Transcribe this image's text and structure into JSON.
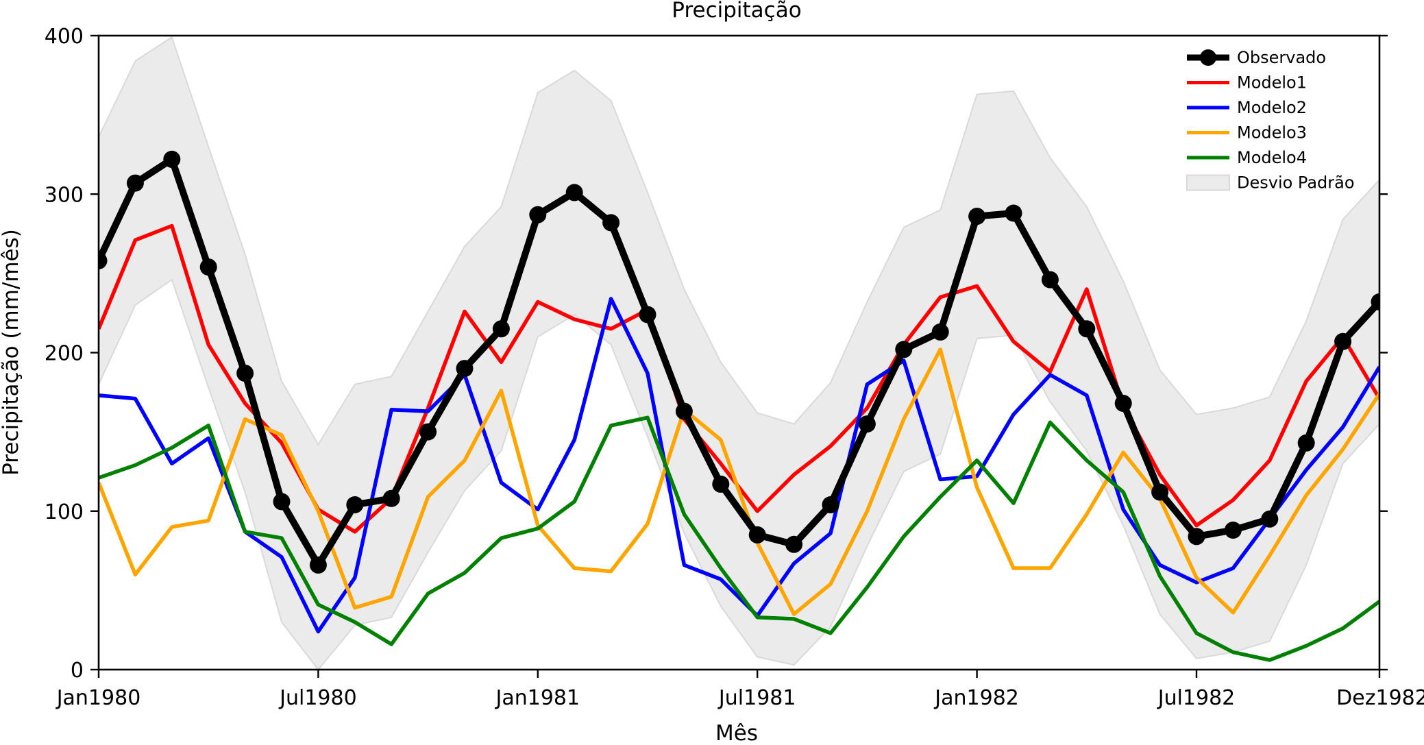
{
  "chart_data": {
    "type": "line",
    "title": "Precipitação",
    "xlabel": "Mês",
    "ylabel": "Precipitação (mm/mês)",
    "ylim": [
      0,
      400
    ],
    "yticks": [
      0,
      100,
      200,
      300,
      400
    ],
    "xticks": [
      {
        "index": 0,
        "label": "Jan1980"
      },
      {
        "index": 6,
        "label": "Jul1980"
      },
      {
        "index": 12,
        "label": "Jan1981"
      },
      {
        "index": 18,
        "label": "Jul1981"
      },
      {
        "index": 24,
        "label": "Jan1982"
      },
      {
        "index": 30,
        "label": "Jul1982"
      },
      {
        "index": 35,
        "label": "Dez1982"
      }
    ],
    "x": [
      "1980-01",
      "1980-02",
      "1980-03",
      "1980-04",
      "1980-05",
      "1980-06",
      "1980-07",
      "1980-08",
      "1980-09",
      "1980-10",
      "1980-11",
      "1980-12",
      "1981-01",
      "1981-02",
      "1981-03",
      "1981-04",
      "1981-05",
      "1981-06",
      "1981-07",
      "1981-08",
      "1981-09",
      "1981-10",
      "1981-11",
      "1981-12",
      "1982-01",
      "1982-02",
      "1982-03",
      "1982-04",
      "1982-05",
      "1982-06",
      "1982-07",
      "1982-08",
      "1982-09",
      "1982-10",
      "1982-11",
      "1982-12"
    ],
    "legend_position": "top-right",
    "grid": false,
    "series": [
      {
        "name": "Observado",
        "color": "#000000",
        "markers": true,
        "values": [
          258,
          307,
          322,
          254,
          187,
          106,
          66,
          104,
          108,
          150,
          190,
          215,
          287,
          301,
          282,
          224,
          163,
          117,
          85,
          79,
          104,
          155,
          202,
          213,
          286,
          288,
          246,
          215,
          168,
          112,
          84,
          88,
          95,
          143,
          207,
          232
        ]
      },
      {
        "name": "Modelo1",
        "color": "#ff0000",
        "values": [
          215,
          271,
          280,
          205,
          168,
          143,
          101,
          87,
          108,
          165,
          226,
          194,
          232,
          221,
          215,
          227,
          158,
          130,
          100,
          123,
          141,
          165,
          205,
          235,
          242,
          207,
          188,
          240,
          166,
          123,
          91,
          107,
          132,
          182,
          210,
          171
        ]
      },
      {
        "name": "Modelo2",
        "color": "#0000ff",
        "values": [
          173,
          171,
          130,
          146,
          87,
          71,
          24,
          58,
          164,
          163,
          186,
          118,
          101,
          145,
          234,
          187,
          66,
          57,
          34,
          67,
          86,
          180,
          195,
          120,
          122,
          161,
          186,
          173,
          101,
          66,
          55,
          64,
          95,
          126,
          153,
          191
        ]
      },
      {
        "name": "Modelo3",
        "color": "#ffa500",
        "values": [
          118,
          60,
          90,
          94,
          158,
          148,
          100,
          39,
          46,
          109,
          132,
          176,
          91,
          64,
          62,
          92,
          164,
          145,
          80,
          35,
          54,
          100,
          158,
          202,
          115,
          64,
          64,
          98,
          137,
          108,
          58,
          36,
          72,
          110,
          139,
          174
        ]
      },
      {
        "name": "Modelo4",
        "color": "#008000",
        "values": [
          121,
          129,
          140,
          154,
          87,
          83,
          41,
          30,
          16,
          48,
          61,
          83,
          89,
          106,
          154,
          159,
          98,
          64,
          33,
          32,
          23,
          52,
          84,
          109,
          132,
          105,
          156,
          132,
          112,
          59,
          23,
          11,
          6,
          15,
          26,
          43
        ]
      }
    ],
    "band": {
      "name": "Desvio Padrão",
      "color": "#ebebeb",
      "lower": [
        180,
        230,
        246,
        178,
        112,
        30,
        0,
        28,
        33,
        74,
        113,
        138,
        210,
        224,
        205,
        147,
        86,
        40,
        8,
        3,
        27,
        78,
        125,
        136,
        209,
        211,
        169,
        138,
        91,
        35,
        7,
        11,
        18,
        66,
        130,
        155
      ],
      "upper": [
        336,
        384,
        399,
        330,
        262,
        182,
        142,
        180,
        185,
        226,
        267,
        292,
        364,
        378,
        359,
        301,
        240,
        194,
        162,
        155,
        181,
        232,
        279,
        290,
        363,
        365,
        323,
        292,
        245,
        189,
        161,
        165,
        172,
        220,
        284,
        309
      ]
    }
  }
}
